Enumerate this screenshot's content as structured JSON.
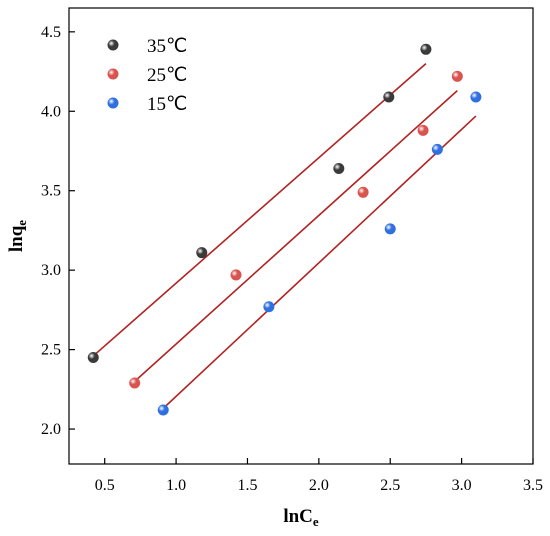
{
  "chart_data": {
    "type": "scatter",
    "xlabel": {
      "main": "lnC",
      "sub": "e"
    },
    "ylabel": {
      "main": "lnq",
      "sub": "e"
    },
    "xlim": [
      0.25,
      3.5
    ],
    "ylim": [
      1.78,
      4.65
    ],
    "xticks": [
      "0.5",
      "1.0",
      "1.5",
      "2.0",
      "2.5",
      "3.0",
      "3.5"
    ],
    "yticks": [
      "2.0",
      "2.5",
      "3.0",
      "3.5",
      "4.0",
      "4.5"
    ],
    "grid": false,
    "legend_position": "top-left",
    "fit_line_color": "#b22222",
    "series": [
      {
        "name": "35℃",
        "color": "#3a3a3a",
        "x": [
          0.42,
          1.18,
          2.14,
          2.49,
          2.75
        ],
        "y": [
          2.45,
          3.11,
          3.64,
          4.09,
          4.39
        ],
        "fit": {
          "x": [
            0.42,
            2.75
          ],
          "y": [
            2.46,
            4.3
          ]
        }
      },
      {
        "name": "25℃",
        "color": "#d9534f",
        "x": [
          0.71,
          1.42,
          2.31,
          2.73,
          2.97
        ],
        "y": [
          2.29,
          2.97,
          3.49,
          3.88,
          4.22
        ],
        "fit": {
          "x": [
            0.71,
            2.97
          ],
          "y": [
            2.3,
            4.13
          ]
        }
      },
      {
        "name": "15℃",
        "color": "#2f6fe0",
        "x": [
          0.91,
          1.65,
          2.5,
          2.83,
          3.1
        ],
        "y": [
          2.12,
          2.77,
          3.26,
          3.76,
          4.09
        ],
        "fit": {
          "x": [
            0.91,
            3.1
          ],
          "y": [
            2.13,
            3.97
          ]
        }
      }
    ]
  }
}
